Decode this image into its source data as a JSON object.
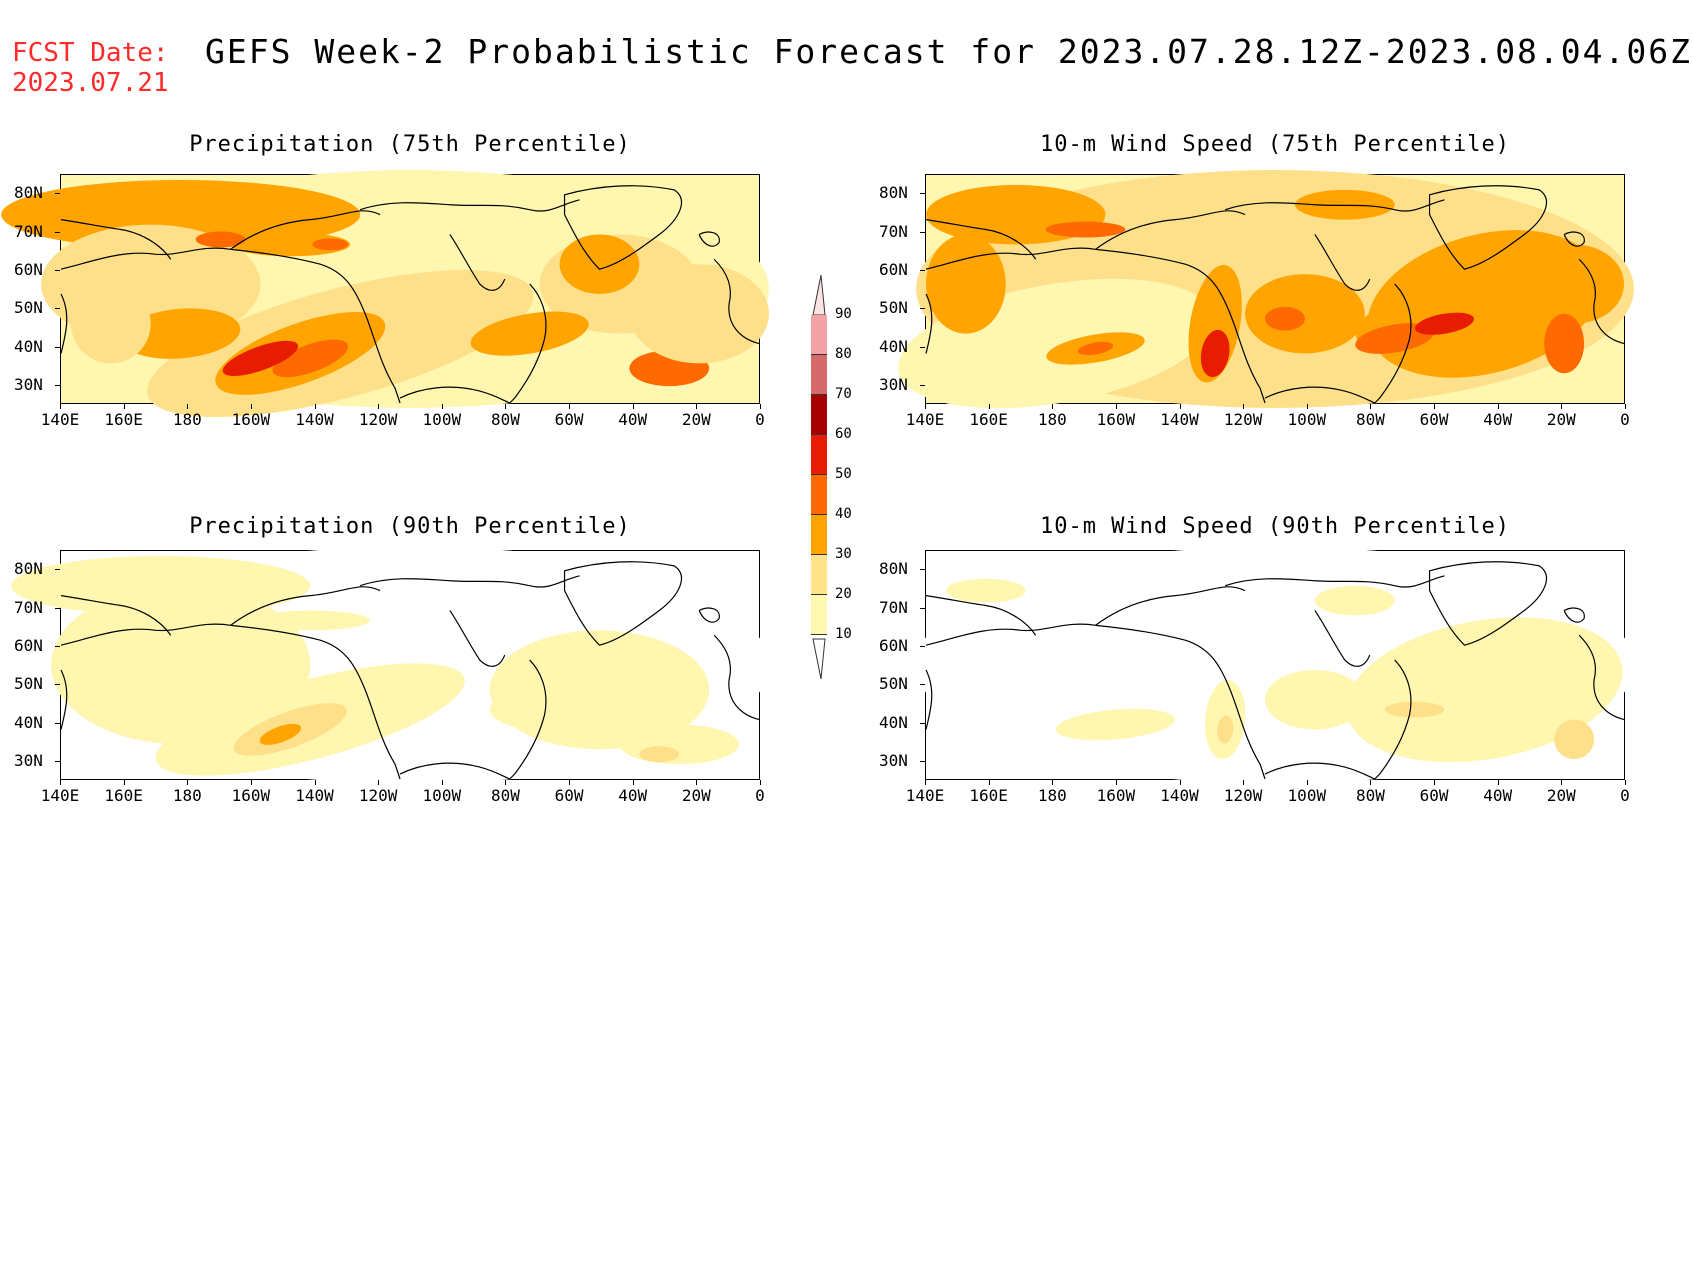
{
  "header": {
    "fcst_label": "FCST Date:",
    "fcst_date": "2023.07.21",
    "title": "GEFS Week-2 Probabilistic Forecast for 2023.07.28.12Z-2023.08.04.06Z"
  },
  "axes": {
    "lat_labels": [
      "80N",
      "70N",
      "60N",
      "50N",
      "40N",
      "30N"
    ],
    "lat_values": [
      80,
      70,
      60,
      50,
      40,
      30
    ],
    "lon_labels": [
      "140E",
      "160E",
      "180",
      "160W",
      "140W",
      "120W",
      "100W",
      "80W",
      "60W",
      "40W",
      "20W",
      "0"
    ],
    "lat_range": [
      25,
      85
    ],
    "lon_range_label": "140E to 0"
  },
  "panels": [
    {
      "id": "precip-75",
      "title": "Precipitation (75th Percentile)",
      "intensity": "high",
      "variable": "precipitation"
    },
    {
      "id": "wind-75",
      "title": "10-m Wind Speed (75th Percentile)",
      "intensity": "high",
      "variable": "wind"
    },
    {
      "id": "precip-90",
      "title": "Precipitation (90th Percentile)",
      "intensity": "low",
      "variable": "precipitation"
    },
    {
      "id": "wind-90",
      "title": "10-m Wind Speed (90th Percentile)",
      "intensity": "low",
      "variable": "wind"
    }
  ],
  "colorbar": {
    "levels": [
      "10",
      "20",
      "30",
      "40",
      "50",
      "60",
      "70",
      "80",
      "90"
    ],
    "colors": [
      "#fff9b0",
      "#ffe38a",
      "#ffa400",
      "#ff6a00",
      "#e81c00",
      "#a80000",
      "#d46a6a",
      "#f3a3a6",
      "#fbe0e0"
    ]
  },
  "colors": {
    "pale": "#fff6b0",
    "light": "#ffe08a",
    "orange": "#ffa400",
    "dark": "#ff6a00",
    "red": "#e81c00",
    "fcst_text": "#ff2a2a"
  }
}
